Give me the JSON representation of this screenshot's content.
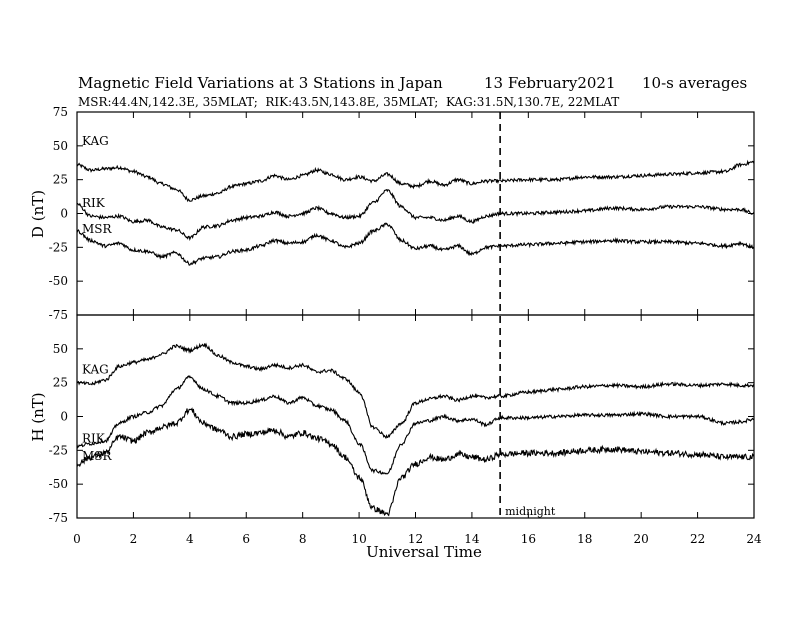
{
  "chart_data": {
    "type": "line",
    "title": "Magnetic Field Variations at 3 Stations in Japan",
    "date": "13 February2021",
    "averaging": "10-s averages",
    "subtitle": "MSR:44.4N,142.3E, 35MLAT;  RIK:43.5N,143.8E, 35MLAT;  KAG:31.5N,130.7E, 22MLAT",
    "xlabel": "Universal Time",
    "xlim": [
      0,
      24
    ],
    "xticks": [
      0,
      2,
      4,
      6,
      8,
      10,
      12,
      14,
      16,
      18,
      20,
      22,
      24
    ],
    "marker": {
      "x": 15,
      "label": "midnight"
    },
    "panels": [
      {
        "ylabel": "D (nT)",
        "ylim": [
          -75,
          75
        ],
        "yticks": [
          75,
          50,
          25,
          0,
          -25,
          -50,
          -75
        ],
        "series": [
          {
            "name": "KAG",
            "x": [
              0,
              0.5,
              1,
              1.5,
              2,
              2.5,
              3,
              3.5,
              4,
              4.5,
              5,
              5.5,
              6,
              6.5,
              7,
              7.5,
              8,
              8.5,
              9,
              9.5,
              10,
              10.5,
              11,
              11.5,
              12,
              12.5,
              13,
              13.5,
              14,
              14.5,
              15,
              16,
              17,
              18,
              19,
              20,
              21,
              22,
              23,
              23.5,
              24
            ],
            "values": [
              36,
              32,
              33,
              34,
              31,
              27,
              22,
              18,
              10,
              13,
              15,
              20,
              22,
              24,
              28,
              25,
              28,
              32,
              29,
              25,
              27,
              24,
              29,
              22,
              20,
              24,
              21,
              25,
              22,
              24,
              24,
              25,
              25,
              27,
              27,
              28,
              29,
              30,
              31,
              36,
              38
            ]
          },
          {
            "name": "RIK",
            "x": [
              0,
              0.5,
              1,
              1.5,
              2,
              2.5,
              3,
              3.5,
              4,
              4.5,
              5,
              5.5,
              6,
              6.5,
              7,
              7.5,
              8,
              8.5,
              9,
              9.5,
              10,
              10.5,
              11,
              11.5,
              12,
              12.5,
              13,
              13.5,
              14,
              14.5,
              15,
              16,
              17,
              18,
              19,
              20,
              21,
              22,
              23,
              23.5,
              24
            ],
            "values": [
              7,
              -2,
              -3,
              -2,
              -6,
              -5,
              -10,
              -12,
              -18,
              -10,
              -9,
              -5,
              -3,
              -2,
              1,
              -2,
              0,
              4,
              0,
              -3,
              -2,
              8,
              17,
              5,
              -3,
              -3,
              -5,
              -2,
              -6,
              -2,
              0,
              0,
              1,
              2,
              4,
              3,
              5,
              5,
              3,
              3,
              0
            ]
          },
          {
            "name": "MSR",
            "x": [
              0,
              0.5,
              1,
              1.5,
              2,
              2.5,
              3,
              3.5,
              4,
              4.5,
              5,
              5.5,
              6,
              6.5,
              7,
              7.5,
              8,
              8.5,
              9,
              9.5,
              10,
              10.5,
              11,
              11.5,
              12,
              12.5,
              13,
              13.5,
              14,
              14.5,
              15,
              16,
              17,
              18,
              19,
              20,
              21,
              22,
              23,
              23.5,
              24
            ],
            "values": [
              -13,
              -20,
              -24,
              -22,
              -27,
              -28,
              -32,
              -29,
              -37,
              -33,
              -32,
              -28,
              -27,
              -24,
              -20,
              -22,
              -21,
              -16,
              -20,
              -25,
              -22,
              -13,
              -8,
              -20,
              -26,
              -24,
              -27,
              -24,
              -30,
              -25,
              -24,
              -23,
              -22,
              -21,
              -20,
              -21,
              -21,
              -22,
              -24,
              -22,
              -25
            ]
          }
        ]
      },
      {
        "ylabel": "H (nT)",
        "ylim": [
          -75,
          75
        ],
        "yticks": [
          75,
          50,
          25,
          0,
          -25,
          -50,
          -75
        ],
        "series": [
          {
            "name": "KAG",
            "x": [
              0,
              0.5,
              1,
              1.5,
              2,
              2.5,
              3,
              3.5,
              4,
              4.5,
              5,
              5.5,
              6,
              6.5,
              7,
              7.5,
              8,
              8.5,
              9,
              9.5,
              10,
              10.5,
              11,
              11.5,
              12,
              12.5,
              13,
              13.5,
              14,
              14.5,
              15,
              16,
              17,
              18,
              19,
              20,
              21,
              22,
              23,
              23.5,
              24
            ],
            "values": [
              25,
              24,
              27,
              37,
              40,
              42,
              46,
              52,
              49,
              53,
              45,
              40,
              37,
              35,
              38,
              36,
              38,
              33,
              34,
              28,
              18,
              -8,
              -15,
              -5,
              10,
              13,
              15,
              12,
              15,
              14,
              15,
              18,
              20,
              22,
              23,
              22,
              24,
              23,
              24,
              23,
              23
            ]
          },
          {
            "name": "RIK",
            "x": [
              0,
              0.5,
              1,
              1.5,
              2,
              2.5,
              3,
              3.5,
              4,
              4.5,
              5,
              5.5,
              6,
              6.5,
              7,
              7.5,
              8,
              8.5,
              9,
              9.5,
              10,
              10.5,
              11,
              11.5,
              12,
              12.5,
              13,
              13.5,
              14,
              14.5,
              15,
              16,
              17,
              18,
              19,
              20,
              21,
              22,
              23,
              23.5,
              24
            ],
            "values": [
              -22,
              -20,
              -18,
              -5,
              0,
              3,
              8,
              20,
              29,
              20,
              15,
              10,
              10,
              12,
              15,
              10,
              14,
              8,
              5,
              -3,
              -20,
              -40,
              -42,
              -20,
              -5,
              -3,
              0,
              -3,
              -2,
              -6,
              -1,
              -1,
              0,
              1,
              1,
              2,
              0,
              0,
              -5,
              -4,
              -2
            ]
          },
          {
            "name": "MSR",
            "x": [
              0,
              0.5,
              1,
              1.5,
              2,
              2.5,
              3,
              3.5,
              4,
              4.5,
              5,
              5.5,
              6,
              6.5,
              7,
              7.5,
              8,
              8.5,
              9,
              9.5,
              10,
              10.5,
              11,
              11.5,
              12,
              12.5,
              13,
              13.5,
              14,
              14.5,
              15,
              16,
              17,
              18,
              19,
              20,
              21,
              22,
              23,
              23.5,
              24
            ],
            "values": [
              -35,
              -30,
              -27,
              -15,
              -18,
              -12,
              -8,
              -5,
              5,
              -5,
              -10,
              -15,
              -13,
              -12,
              -10,
              -15,
              -12,
              -16,
              -20,
              -30,
              -45,
              -68,
              -72,
              -45,
              -35,
              -30,
              -32,
              -28,
              -30,
              -32,
              -28,
              -27,
              -27,
              -25,
              -24,
              -26,
              -27,
              -28,
              -30,
              -30,
              -30
            ]
          }
        ]
      }
    ]
  }
}
